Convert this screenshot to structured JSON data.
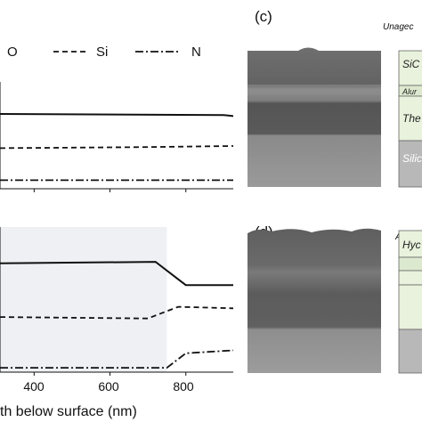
{
  "legend": {
    "o": "O",
    "si": "Si",
    "n": "N"
  },
  "axis": {
    "xlabel": "th below surface (nm)",
    "ticks": [
      "400",
      "600",
      "800"
    ]
  },
  "panel_c": {
    "label": "(c)",
    "tag": "Unagec",
    "layers": [
      "SiC",
      "Alur",
      "The",
      "Silic"
    ]
  },
  "panel_d": {
    "label": "(d)",
    "tag": "Agec",
    "layers": [
      "Hyc"
    ]
  },
  "chart_data": [
    {
      "type": "line",
      "xlabel": "th below surface (nm)",
      "x_ticks": [
        400,
        600,
        800
      ],
      "xlim": [
        310,
        925
      ],
      "series": [
        {
          "name": "O",
          "style": "solid",
          "x": [
            310,
            900,
            925
          ],
          "y": [
            0.3,
            0.31,
            0.32
          ]
        },
        {
          "name": "Si",
          "style": "dashed",
          "x": [
            310,
            700,
            925
          ],
          "y": [
            0.62,
            0.61,
            0.6
          ]
        },
        {
          "name": "N",
          "style": "dashdot",
          "x": [
            310,
            925
          ],
          "y": [
            0.92,
            0.92
          ]
        }
      ]
    },
    {
      "type": "line",
      "xlabel": "th below surface (nm)",
      "x_ticks": [
        400,
        600,
        800
      ],
      "xlim": [
        310,
        925
      ],
      "shaded_region": [
        310,
        750
      ],
      "series": [
        {
          "name": "O",
          "style": "solid",
          "x": [
            310,
            720,
            760,
            800,
            925
          ],
          "y": [
            0.25,
            0.24,
            0.32,
            0.4,
            0.4
          ]
        },
        {
          "name": "Si",
          "style": "dashed",
          "x": [
            310,
            700,
            780,
            925
          ],
          "y": [
            0.62,
            0.63,
            0.55,
            0.56
          ]
        },
        {
          "name": "N",
          "style": "dashdot",
          "x": [
            310,
            750,
            800,
            925
          ],
          "y": [
            0.97,
            0.97,
            0.87,
            0.85
          ]
        }
      ]
    }
  ]
}
